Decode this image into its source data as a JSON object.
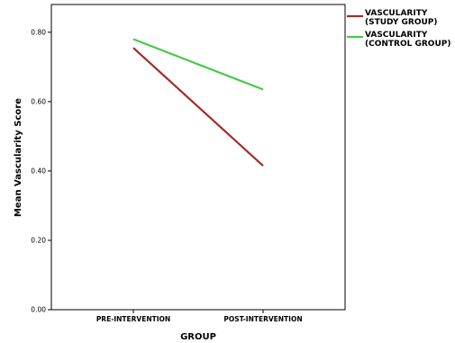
{
  "chart_data": {
    "type": "line",
    "xlabel": "GROUP",
    "ylabel": "Mean Vascularity Score",
    "categories": [
      "PRE-INTERVENTION",
      "POST-INTERVENTION"
    ],
    "ylim": [
      0,
      0.88
    ],
    "yticks": [
      "0.00",
      "0.20",
      "0.40",
      "0.60",
      "0.80"
    ],
    "grid": false,
    "legend_position": "right",
    "series": [
      {
        "name_lines": [
          "VASCULARITY",
          "(STUDY GROUP)"
        ],
        "values": [
          0.755,
          0.415
        ],
        "color": "#a52a2a"
      },
      {
        "name_lines": [
          "VASCULARITY",
          "(CONTROL GROUP)"
        ],
        "values": [
          0.78,
          0.635
        ],
        "color": "#44cc44"
      }
    ]
  }
}
